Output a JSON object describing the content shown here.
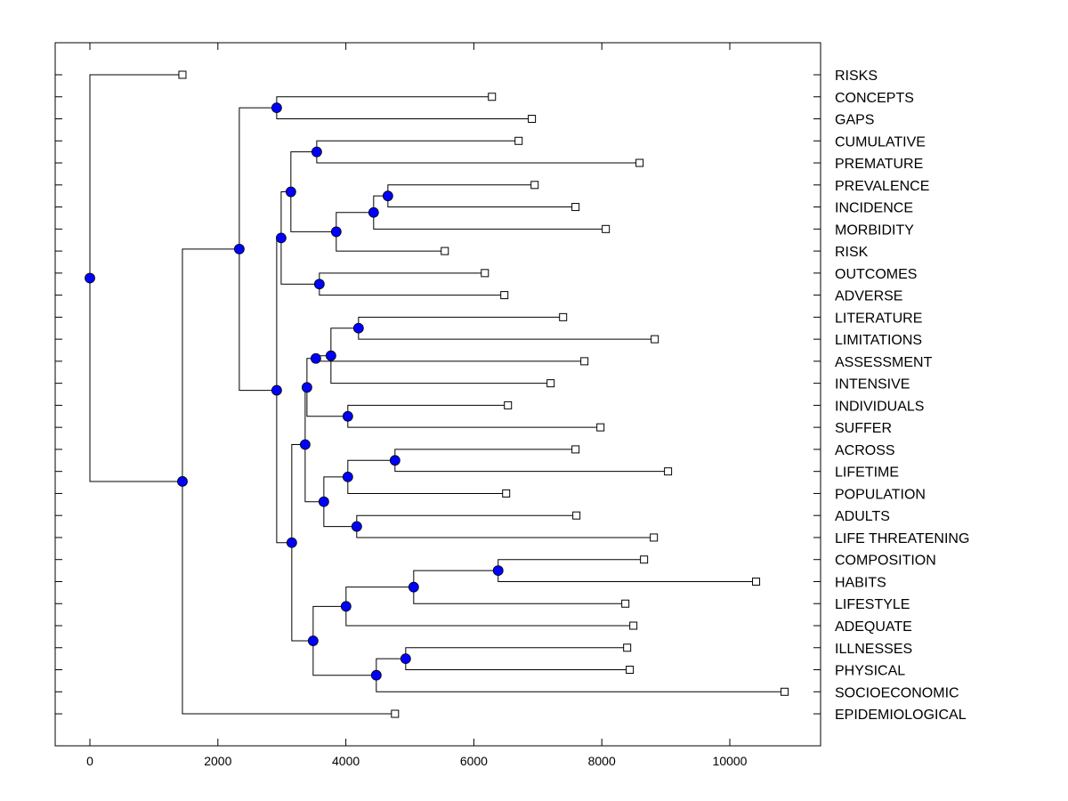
{
  "chart_data": {
    "type": "dendrogram",
    "title": "",
    "xlabel": "",
    "ylabel": "",
    "xlim": [
      -540,
      11400
    ],
    "x_ticks": [
      0,
      2000,
      4000,
      6000,
      8000,
      10000
    ],
    "x_tick_labels": [
      "0",
      "2000",
      "4000",
      "6000",
      "8000",
      "10000"
    ],
    "grid": false,
    "node_color": "#0000ff",
    "leaves": [
      {
        "label": "RISKS",
        "value": 1446
      },
      {
        "label": "CONCEPTS",
        "value": 6283
      },
      {
        "label": "GAPS",
        "value": 6907
      },
      {
        "label": "CUMULATIVE",
        "value": 6700
      },
      {
        "label": "PREMATURE",
        "value": 8590
      },
      {
        "label": "PREVALENCE",
        "value": 6950
      },
      {
        "label": "INCIDENCE",
        "value": 7589
      },
      {
        "label": "MORBIDITY",
        "value": 8062
      },
      {
        "label": "RISK",
        "value": 5546
      },
      {
        "label": "OUTCOMES",
        "value": 6172
      },
      {
        "label": "ADVERSE",
        "value": 6477
      },
      {
        "label": "LITERATURE",
        "value": 7395
      },
      {
        "label": "LIMITATIONS",
        "value": 8827
      },
      {
        "label": "ASSESSMENT",
        "value": 7728
      },
      {
        "label": "INTENSIVE",
        "value": 7200
      },
      {
        "label": "INDIVIDUALS",
        "value": 6533
      },
      {
        "label": "SUFFER",
        "value": 7979
      },
      {
        "label": "ACROSS",
        "value": 7589
      },
      {
        "label": "LIFETIME",
        "value": 9035
      },
      {
        "label": "POPULATION",
        "value": 6505
      },
      {
        "label": "ADULTS",
        "value": 7603
      },
      {
        "label": "LIFE THREATENING",
        "value": 8813
      },
      {
        "label": "COMPOSITION",
        "value": 8660
      },
      {
        "label": "HABITS",
        "value": 10411
      },
      {
        "label": "LIFESTYLE",
        "value": 8368
      },
      {
        "label": "ADEQUATE",
        "value": 8493
      },
      {
        "label": "ILLNESSES",
        "value": 8396
      },
      {
        "label": "PHYSICAL",
        "value": 8437
      },
      {
        "label": "SOCIOECONOMIC",
        "value": 10856
      },
      {
        "label": "EPIDEMIOLOGICAL",
        "value": 4768
      }
    ],
    "nodes": [
      {
        "id": "n0",
        "value": 0,
        "children": [
          "L0",
          "n1"
        ]
      },
      {
        "id": "n1",
        "value": 1446,
        "children": [
          "n2",
          "L29"
        ]
      },
      {
        "id": "n2",
        "value": 2335,
        "children": [
          "n3",
          "n4"
        ]
      },
      {
        "id": "n3",
        "value": 2919,
        "children": [
          "L1",
          "L2"
        ]
      },
      {
        "id": "n4",
        "value": 2919,
        "children": [
          "n5",
          "n6"
        ]
      },
      {
        "id": "n5",
        "value": 2989,
        "children": [
          "n7",
          "n8"
        ]
      },
      {
        "id": "n7",
        "value": 3141,
        "children": [
          "n9",
          "n10"
        ]
      },
      {
        "id": "n9",
        "value": 3545,
        "children": [
          "L3",
          "L4"
        ]
      },
      {
        "id": "n10",
        "value": 3850,
        "children": [
          "n11",
          "L8"
        ]
      },
      {
        "id": "n11",
        "value": 4434,
        "children": [
          "n12",
          "L7"
        ]
      },
      {
        "id": "n12",
        "value": 4657,
        "children": [
          "L5",
          "L6"
        ]
      },
      {
        "id": "n8",
        "value": 3586,
        "children": [
          "L9",
          "L10"
        ]
      },
      {
        "id": "n6",
        "value": 3155,
        "children": [
          "n13",
          "n14"
        ]
      },
      {
        "id": "n13",
        "value": 3364,
        "children": [
          "n15",
          "n16"
        ]
      },
      {
        "id": "n15",
        "value": 3392,
        "children": [
          "n17",
          "n18"
        ]
      },
      {
        "id": "n17",
        "value": 3531,
        "children": [
          "n19",
          "L13"
        ]
      },
      {
        "id": "n19",
        "value": 3767,
        "children": [
          "n20",
          "L14"
        ]
      },
      {
        "id": "n20",
        "value": 4198,
        "children": [
          "L11",
          "L12"
        ]
      },
      {
        "id": "n18",
        "value": 4031,
        "children": [
          "L15",
          "L16"
        ]
      },
      {
        "id": "n16",
        "value": 3656,
        "children": [
          "n21",
          "n22"
        ]
      },
      {
        "id": "n21",
        "value": 4031,
        "children": [
          "n23",
          "L19"
        ]
      },
      {
        "id": "n23",
        "value": 4768,
        "children": [
          "L17",
          "L18"
        ]
      },
      {
        "id": "n22",
        "value": 4170,
        "children": [
          "L20",
          "L21"
        ]
      },
      {
        "id": "n14",
        "value": 3489,
        "children": [
          "n24",
          "n25"
        ]
      },
      {
        "id": "n24",
        "value": 4003,
        "children": [
          "n26",
          "L25"
        ]
      },
      {
        "id": "n26",
        "value": 5060,
        "children": [
          "n27",
          "L24"
        ]
      },
      {
        "id": "n27",
        "value": 6380,
        "children": [
          "L22",
          "L23"
        ]
      },
      {
        "id": "n25",
        "value": 4476,
        "children": [
          "n28",
          "L28"
        ]
      },
      {
        "id": "n28",
        "value": 4935,
        "children": [
          "L26",
          "L27"
        ]
      }
    ]
  }
}
